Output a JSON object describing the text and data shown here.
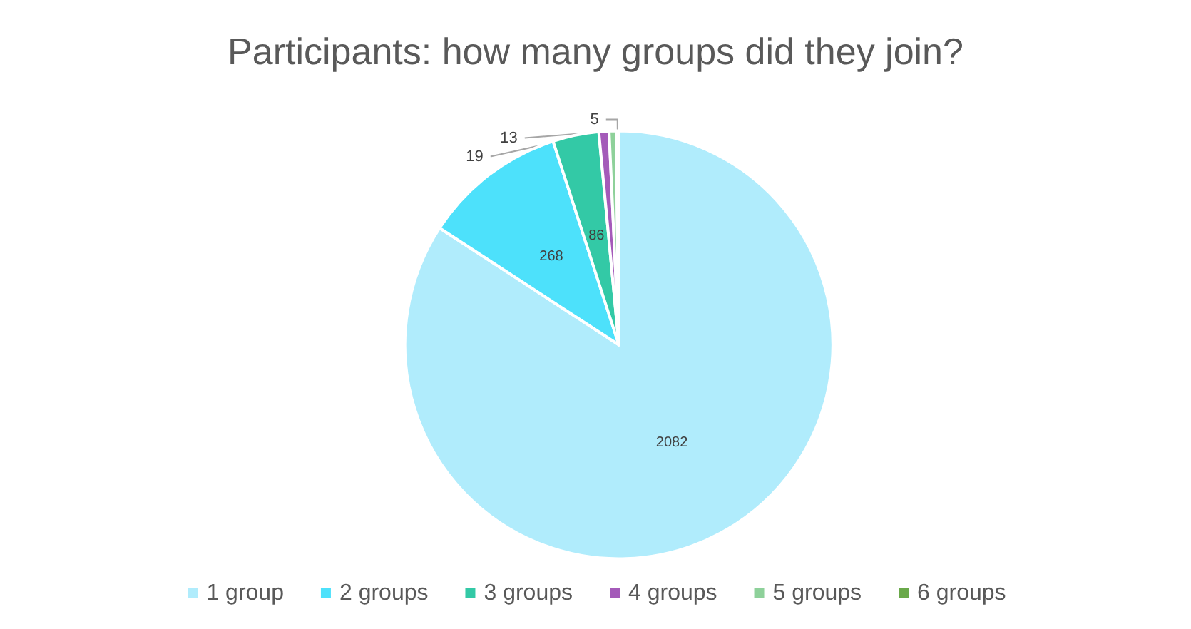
{
  "chart_data": {
    "type": "pie",
    "title": "Participants: how many groups did they join?",
    "categories": [
      "1 group",
      "2 groups",
      "3 groups",
      "4 groups",
      "5 groups",
      "6 groups"
    ],
    "values": [
      2082,
      268,
      86,
      19,
      13,
      5
    ],
    "colors": [
      "#b0ecfc",
      "#4de1fb",
      "#33c9a6",
      "#a45ab9",
      "#8ed19a",
      "#6aa94a"
    ],
    "data_labels": true,
    "legend": "bottom"
  }
}
